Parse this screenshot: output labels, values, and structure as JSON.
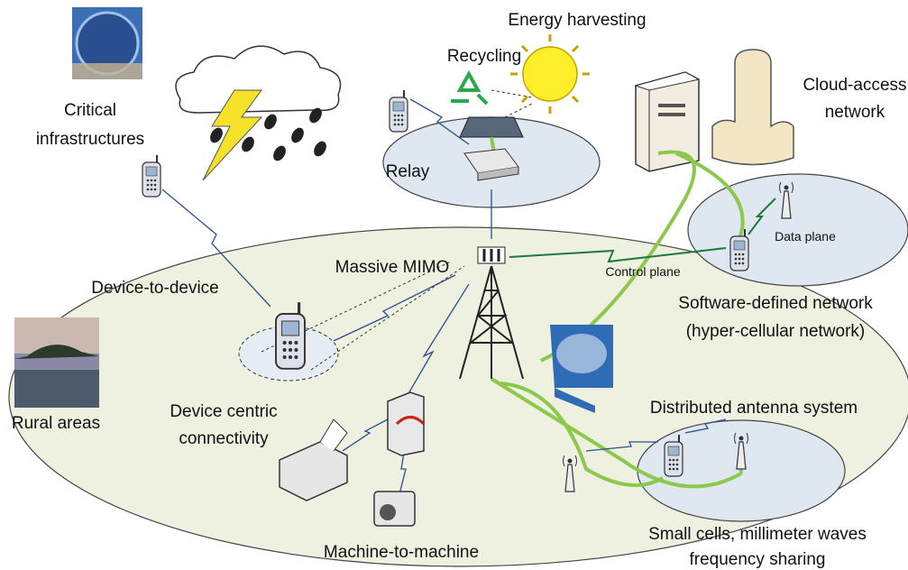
{
  "labels": {
    "energy_harvesting": [
      "Energy harvesting"
    ],
    "recycling": [
      "Recycling"
    ],
    "cloud_access": [
      "Cloud-access",
      "network"
    ],
    "critical": [
      "Critical",
      "infrastructures"
    ],
    "relay": [
      "Relay"
    ],
    "data_plane": [
      "Data plane"
    ],
    "massive_mimo": [
      "Massive MIMO"
    ],
    "control_plane": [
      "Control plane"
    ],
    "d2d": [
      "Device-to-device"
    ],
    "sdn": [
      "Software-defined network",
      "(hyper-cellular network)"
    ],
    "rural": [
      "Rural areas"
    ],
    "device_centric": [
      "Device centric",
      "connectivity"
    ],
    "das": [
      "Distributed antenna system"
    ],
    "small_cells": [
      "Small cells, millimeter waves",
      "frequency sharing"
    ],
    "m2m": [
      "Machine-to-machine"
    ]
  }
}
